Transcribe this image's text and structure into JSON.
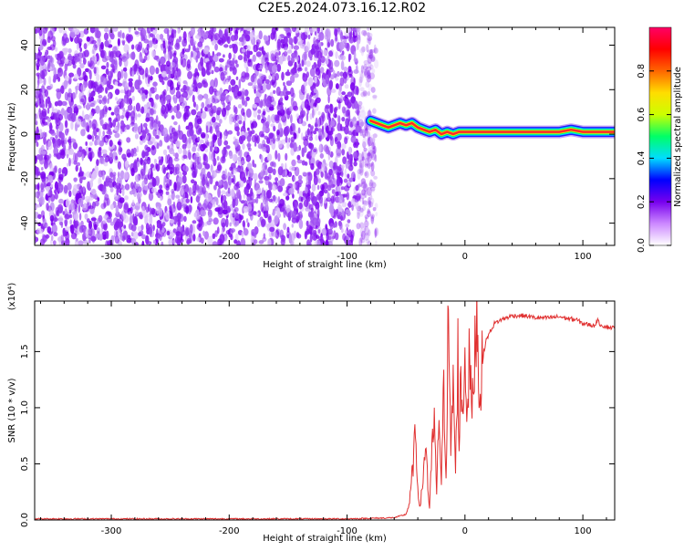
{
  "title": "C2E5.2024.073.16.12.R02",
  "chart_data": [
    {
      "type": "heatmap",
      "name": "spectrogram",
      "xlabel": "Height of straight line (km)",
      "ylabel": "Frequency (Hz)",
      "xlim": [
        -365,
        127
      ],
      "ylim": [
        -50,
        48
      ],
      "xticks": [
        -300,
        -200,
        -100,
        0,
        100
      ],
      "xtick_labels": [
        "-300",
        "-200",
        "-100",
        "0",
        "100"
      ],
      "yticks": [
        -40,
        -20,
        0,
        20,
        40
      ],
      "ytick_labels": [
        "-40",
        "-20",
        "0",
        "20",
        "40"
      ],
      "noise_region_x": [
        -365,
        -75
      ],
      "signal_ridge": {
        "x": [
          -80,
          -75,
          -70,
          -65,
          -60,
          -55,
          -50,
          -45,
          -40,
          -35,
          -30,
          -25,
          -20,
          -15,
          -10,
          -5,
          0,
          10,
          20,
          40,
          60,
          80,
          90,
          100,
          110,
          127
        ],
        "y": [
          6,
          5,
          4,
          3,
          4,
          5,
          4,
          5,
          3,
          2,
          1,
          2,
          0,
          1,
          0,
          1,
          1,
          1,
          1,
          1,
          1,
          1,
          2,
          1,
          1,
          1
        ]
      },
      "colorbar": {
        "label": "Normalized spectral amplitude",
        "range": [
          0.0,
          1.0
        ],
        "ticks": [
          0.0,
          0.2,
          0.4,
          0.6,
          0.8
        ],
        "tick_labels": [
          "0.0",
          "0.2",
          "0.4",
          "0.6",
          "0.8"
        ],
        "colors": [
          "#ffffff",
          "#cc88ff",
          "#7700ee",
          "#0000ff",
          "#00ddff",
          "#00ff66",
          "#ccff00",
          "#ffdd00",
          "#ff6600",
          "#ff0000",
          "#ff0066"
        ]
      }
    },
    {
      "type": "line",
      "name": "snr",
      "xlabel": "Height of straight line (km)",
      "ylabel": "SNR (10 * v/v)",
      "multiplier": "(x10⁴)",
      "xlim": [
        -365,
        127
      ],
      "ylim": [
        0.0,
        1.95
      ],
      "xticks": [
        -300,
        -200,
        -100,
        0,
        100
      ],
      "xtick_labels": [
        "-300",
        "-200",
        "-100",
        "0",
        "100"
      ],
      "yticks": [
        0.0,
        0.5,
        1.0,
        1.5
      ],
      "ytick_labels": [
        "0.0",
        "0.5",
        "1.0",
        "1.5"
      ],
      "color": "#e03030",
      "series": [
        {
          "x": [
            -365,
            -300,
            -200,
            -100,
            -60,
            -50,
            -47,
            -44,
            -42,
            -40,
            -38,
            -35,
            -33,
            -31,
            -30,
            -28,
            -26,
            -24,
            -22,
            -20,
            -18,
            -16,
            -14,
            -12,
            -10,
            -8,
            -6,
            -5,
            -4,
            -2,
            0,
            2,
            4,
            6,
            8,
            10,
            12,
            14,
            16,
            18,
            20,
            25,
            30,
            35,
            40,
            50,
            60,
            70,
            80,
            90,
            95,
            100,
            105,
            110,
            112,
            115,
            120,
            127
          ],
          "y": [
            0.01,
            0.01,
            0.01,
            0.01,
            0.02,
            0.05,
            0.15,
            0.5,
            0.75,
            0.3,
            0.1,
            0.45,
            0.7,
            0.2,
            0.1,
            0.6,
            0.9,
            0.2,
            1.0,
            0.3,
            1.2,
            0.4,
            1.95,
            0.5,
            1.3,
            0.4,
            1.5,
            0.6,
            1.2,
            1.0,
            1.4,
            1.0,
            1.5,
            0.9,
            1.4,
            1.95,
            1.1,
            1.3,
            1.5,
            1.6,
            1.65,
            1.75,
            1.78,
            1.8,
            1.82,
            1.82,
            1.8,
            1.8,
            1.81,
            1.79,
            1.78,
            1.75,
            1.74,
            1.73,
            1.78,
            1.74,
            1.72,
            1.71
          ]
        }
      ]
    }
  ]
}
